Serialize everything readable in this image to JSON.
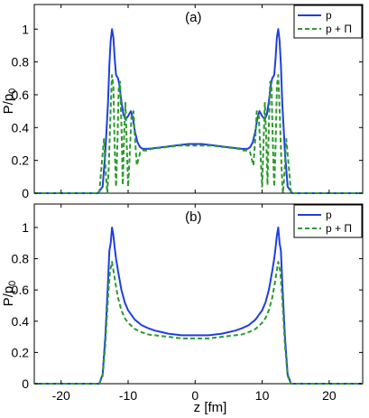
{
  "chart_data": [
    {
      "type": "line",
      "panel_label": "(a)",
      "xlim": [
        -24,
        25
      ],
      "ylim": [
        0,
        1.15
      ],
      "xticks": [
        -20,
        -10,
        0,
        10,
        20
      ],
      "yticks": [
        0,
        0.2,
        0.4,
        0.6,
        0.8,
        1
      ],
      "ylabel": "P/p0",
      "legend_position": "top-right",
      "grid": false,
      "series": [
        {
          "name": "p",
          "color": "#1f3fe0",
          "dash": "solid",
          "x": [
            -24,
            -14.5,
            -13.8,
            -13.4,
            -13.0,
            -12.8,
            -12.6,
            -12.4,
            -12.2,
            -12.0,
            -11.8,
            -11.5,
            -11.3,
            -11.0,
            -10.7,
            -10.4,
            -10.0,
            -9.6,
            -9.3,
            -9.0,
            -8.6,
            -8.2,
            -7.8,
            -7.0,
            -6.0,
            -5.0,
            -4.0,
            -3.0,
            -2.0,
            -1.0,
            0.0,
            1.0,
            2.0,
            3.0,
            4.0,
            5.0,
            6.0,
            7.0,
            7.8,
            8.2,
            8.6,
            9.0,
            9.3,
            9.6,
            10.0,
            10.4,
            10.7,
            11.0,
            11.3,
            11.5,
            11.8,
            12.0,
            12.2,
            12.4,
            12.6,
            12.8,
            13.0,
            13.4,
            13.8,
            14.5,
            25
          ],
          "y": [
            0,
            0,
            0.04,
            0.25,
            0.55,
            0.78,
            0.93,
            1.0,
            0.95,
            0.82,
            0.72,
            0.7,
            0.66,
            0.56,
            0.48,
            0.45,
            0.47,
            0.5,
            0.46,
            0.38,
            0.31,
            0.28,
            0.27,
            0.27,
            0.275,
            0.28,
            0.285,
            0.29,
            0.295,
            0.3,
            0.3,
            0.3,
            0.295,
            0.29,
            0.285,
            0.28,
            0.275,
            0.27,
            0.27,
            0.28,
            0.31,
            0.38,
            0.46,
            0.5,
            0.47,
            0.45,
            0.48,
            0.56,
            0.66,
            0.7,
            0.72,
            0.82,
            0.95,
            1.0,
            0.93,
            0.78,
            0.55,
            0.25,
            0.04,
            0,
            0
          ]
        },
        {
          "name": "p + Π",
          "color": "#2e9a2e",
          "dash": "dashed",
          "x": [
            -24,
            -14.3,
            -14.0,
            -13.6,
            -13.3,
            -13.1,
            -12.9,
            -12.6,
            -12.4,
            -12.2,
            -12.0,
            -11.8,
            -11.6,
            -11.4,
            -11.2,
            -11.0,
            -10.8,
            -10.6,
            -10.4,
            -10.2,
            -10.0,
            -9.8,
            -9.5,
            -9.2,
            -9.0,
            -8.7,
            -8.5,
            -8.2,
            -7.8,
            -7.2,
            -6.5,
            -5.5,
            -4.5,
            -3.5,
            -2.5,
            -1.5,
            -0.5,
            0.5,
            1.5,
            2.5,
            3.5,
            4.5,
            5.5,
            6.5,
            7.2,
            7.8,
            8.2,
            8.5,
            8.7,
            9.0,
            9.2,
            9.5,
            9.8,
            10.0,
            10.2,
            10.4,
            10.6,
            10.8,
            11.0,
            11.2,
            11.4,
            11.6,
            11.8,
            12.0,
            12.2,
            12.4,
            12.6,
            12.9,
            13.1,
            13.3,
            13.6,
            14.0,
            14.3,
            25
          ],
          "y": [
            0,
            0,
            0.15,
            0.33,
            0.1,
            0.0,
            0.15,
            0.52,
            0.72,
            0.65,
            0.28,
            0.04,
            0.3,
            0.64,
            0.68,
            0.42,
            0.05,
            0.35,
            0.55,
            0.3,
            0.04,
            0.2,
            0.47,
            0.5,
            0.35,
            0.17,
            0.2,
            0.25,
            0.26,
            0.26,
            0.27,
            0.275,
            0.28,
            0.285,
            0.29,
            0.29,
            0.29,
            0.29,
            0.29,
            0.29,
            0.285,
            0.28,
            0.275,
            0.27,
            0.26,
            0.26,
            0.25,
            0.2,
            0.17,
            0.35,
            0.5,
            0.47,
            0.2,
            0.04,
            0.3,
            0.55,
            0.35,
            0.05,
            0.42,
            0.68,
            0.64,
            0.3,
            0.04,
            0.28,
            0.65,
            0.72,
            0.52,
            0.15,
            0.0,
            0.1,
            0.33,
            0.15,
            0,
            0
          ]
        }
      ]
    },
    {
      "type": "line",
      "panel_label": "(b)",
      "xlim": [
        -24,
        25
      ],
      "ylim": [
        0,
        1.15
      ],
      "xticks": [
        -20,
        -10,
        0,
        10,
        20
      ],
      "yticks": [
        0,
        0.2,
        0.4,
        0.6,
        0.8,
        1
      ],
      "xlabel": "z [fm]",
      "ylabel": "P/p0",
      "legend_position": "top-right",
      "grid": false,
      "series": [
        {
          "name": "p",
          "color": "#1f3fe0",
          "dash": "solid",
          "x": [
            -24,
            -14.3,
            -13.8,
            -13.4,
            -13.0,
            -12.8,
            -12.6,
            -12.4,
            -12.2,
            -12.0,
            -11.8,
            -11.5,
            -11.0,
            -10.5,
            -10.0,
            -9.0,
            -8.0,
            -7.0,
            -6.0,
            -5.0,
            -4.0,
            -3.0,
            -2.0,
            -1.0,
            0.0,
            1.0,
            2.0,
            3.0,
            4.0,
            5.0,
            6.0,
            7.0,
            8.0,
            9.0,
            10.0,
            10.5,
            11.0,
            11.5,
            11.8,
            12.0,
            12.2,
            12.4,
            12.6,
            12.8,
            13.0,
            13.4,
            13.8,
            14.3,
            25
          ],
          "y": [
            0,
            0,
            0.06,
            0.3,
            0.65,
            0.85,
            0.9,
            1.0,
            0.95,
            0.87,
            0.8,
            0.72,
            0.6,
            0.52,
            0.47,
            0.41,
            0.375,
            0.355,
            0.34,
            0.33,
            0.32,
            0.315,
            0.31,
            0.31,
            0.31,
            0.31,
            0.31,
            0.315,
            0.32,
            0.33,
            0.34,
            0.355,
            0.375,
            0.41,
            0.47,
            0.52,
            0.6,
            0.72,
            0.8,
            0.87,
            0.95,
            1.0,
            0.9,
            0.85,
            0.65,
            0.3,
            0.06,
            0,
            0
          ]
        },
        {
          "name": "p + Π",
          "color": "#2e9a2e",
          "dash": "dashed",
          "x": [
            -24,
            -14.3,
            -13.8,
            -13.4,
            -13.0,
            -12.7,
            -12.4,
            -12.1,
            -11.8,
            -11.5,
            -11.0,
            -10.5,
            -10.0,
            -9.0,
            -8.0,
            -7.0,
            -6.0,
            -5.0,
            -4.0,
            -3.0,
            -2.0,
            -1.0,
            0.0,
            1.0,
            2.0,
            3.0,
            4.0,
            5.0,
            6.0,
            7.0,
            8.0,
            9.0,
            10.0,
            10.5,
            11.0,
            11.5,
            11.8,
            12.1,
            12.4,
            12.7,
            13.0,
            13.4,
            13.8,
            14.3,
            25
          ],
          "y": [
            0,
            0,
            0.05,
            0.25,
            0.55,
            0.72,
            0.78,
            0.7,
            0.62,
            0.55,
            0.47,
            0.42,
            0.39,
            0.35,
            0.33,
            0.315,
            0.31,
            0.305,
            0.3,
            0.295,
            0.29,
            0.29,
            0.29,
            0.29,
            0.29,
            0.295,
            0.3,
            0.305,
            0.31,
            0.315,
            0.33,
            0.35,
            0.39,
            0.42,
            0.47,
            0.55,
            0.62,
            0.7,
            0.78,
            0.72,
            0.55,
            0.25,
            0.05,
            0,
            0
          ]
        }
      ]
    }
  ]
}
